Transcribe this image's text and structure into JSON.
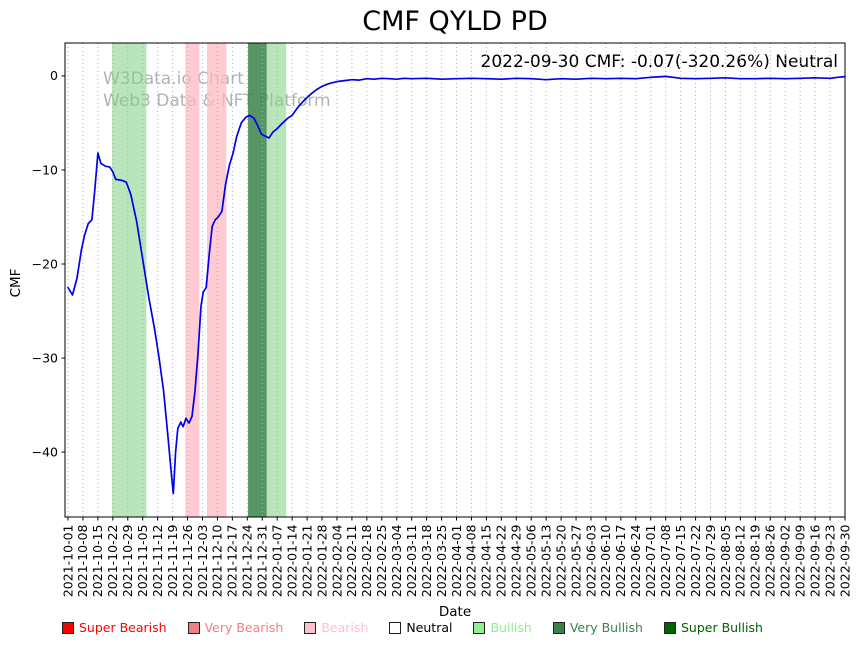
{
  "title": "CMF QYLD PD",
  "annotation": "2022-09-30 CMF: -0.07(-320.26%) Neutral",
  "watermark": {
    "line1": "W3Data.io Chart",
    "line2": "Web3 Data & NFT Platform"
  },
  "chart_data": {
    "type": "line",
    "title": "CMF QYLD PD",
    "xlabel": "Date",
    "ylabel": "CMF",
    "ylim": [
      -46.9,
      3.5
    ],
    "grid": "vertical-dotted",
    "line_color": "#0000ee",
    "y_tick_values": [
      0,
      -10,
      -20,
      -30,
      -40
    ],
    "y_tick_labels": [
      "0",
      "−10",
      "−20",
      "−30",
      "−40"
    ],
    "x_tick_labels": [
      "2021-10-01",
      "2021-10-08",
      "2021-10-15",
      "2021-10-22",
      "2021-10-29",
      "2021-11-05",
      "2021-11-12",
      "2021-11-19",
      "2021-11-26",
      "2021-12-03",
      "2021-12-10",
      "2021-12-17",
      "2021-12-24",
      "2021-12-31",
      "2022-01-07",
      "2022-01-14",
      "2022-01-21",
      "2022-01-28",
      "2022-02-04",
      "2022-02-11",
      "2022-02-18",
      "2022-02-25",
      "2022-03-04",
      "2022-03-11",
      "2022-03-18",
      "2022-03-25",
      "2022-04-01",
      "2022-04-08",
      "2022-04-15",
      "2022-04-22",
      "2022-04-29",
      "2022-05-06",
      "2022-05-13",
      "2022-05-20",
      "2022-05-27",
      "2022-06-03",
      "2022-06-10",
      "2022-06-17",
      "2022-06-24",
      "2022-07-01",
      "2022-07-08",
      "2022-07-15",
      "2022-07-22",
      "2022-07-29",
      "2022-08-05",
      "2022-08-12",
      "2022-08-19",
      "2022-08-26",
      "2022-09-02",
      "2022-09-09",
      "2022-09-16",
      "2022-09-23",
      "2022-09-30"
    ],
    "series": [
      {
        "name": "CMF",
        "points": [
          [
            0,
            -22.5
          ],
          [
            0.3,
            -23.3
          ],
          [
            0.6,
            -21.5
          ],
          [
            0.9,
            -18.5
          ],
          [
            1.1,
            -17
          ],
          [
            1.35,
            -15.7
          ],
          [
            1.6,
            -15.3
          ],
          [
            1.8,
            -12
          ],
          [
            2,
            -8.2
          ],
          [
            2.2,
            -9.3
          ],
          [
            2.5,
            -9.6
          ],
          [
            2.8,
            -9.7
          ],
          [
            3,
            -10.2
          ],
          [
            3.2,
            -11
          ],
          [
            3.6,
            -11.1
          ],
          [
            3.9,
            -11.3
          ],
          [
            4.2,
            -12.6
          ],
          [
            4.6,
            -15.5
          ],
          [
            5,
            -19.5
          ],
          [
            5.4,
            -23.5
          ],
          [
            5.8,
            -27
          ],
          [
            6.1,
            -30
          ],
          [
            6.4,
            -33.5
          ],
          [
            6.7,
            -38.5
          ],
          [
            6.9,
            -42
          ],
          [
            7.05,
            -44.4
          ],
          [
            7.2,
            -40
          ],
          [
            7.35,
            -37.5
          ],
          [
            7.55,
            -36.8
          ],
          [
            7.7,
            -37.3
          ],
          [
            7.9,
            -36.4
          ],
          [
            8.1,
            -36.9
          ],
          [
            8.3,
            -36.2
          ],
          [
            8.5,
            -33.5
          ],
          [
            8.7,
            -29.5
          ],
          [
            8.9,
            -24.5
          ],
          [
            9.05,
            -23
          ],
          [
            9.25,
            -22.5
          ],
          [
            9.45,
            -19
          ],
          [
            9.65,
            -16
          ],
          [
            9.85,
            -15.3
          ],
          [
            10.05,
            -15
          ],
          [
            10.3,
            -14.4
          ],
          [
            10.55,
            -11.5
          ],
          [
            10.8,
            -9.5
          ],
          [
            11.05,
            -8.2
          ],
          [
            11.3,
            -6.4
          ],
          [
            11.6,
            -5
          ],
          [
            11.9,
            -4.4
          ],
          [
            12.15,
            -4.2
          ],
          [
            12.45,
            -4.5
          ],
          [
            12.7,
            -5.3
          ],
          [
            12.95,
            -6.2
          ],
          [
            13.2,
            -6.4
          ],
          [
            13.45,
            -6.6
          ],
          [
            13.7,
            -6
          ],
          [
            14,
            -5.6
          ],
          [
            14.3,
            -5.1
          ],
          [
            14.7,
            -4.5
          ],
          [
            15,
            -4.2
          ],
          [
            15.4,
            -3.3
          ],
          [
            15.8,
            -2.6
          ],
          [
            16.2,
            -2
          ],
          [
            16.6,
            -1.5
          ],
          [
            17,
            -1.1
          ],
          [
            17.5,
            -0.8
          ],
          [
            18,
            -0.6
          ],
          [
            18.5,
            -0.5
          ],
          [
            19,
            -0.4
          ],
          [
            19.5,
            -0.45
          ],
          [
            20,
            -0.3
          ],
          [
            20.5,
            -0.35
          ],
          [
            21,
            -0.25
          ],
          [
            21.5,
            -0.3
          ],
          [
            22,
            -0.35
          ],
          [
            22.5,
            -0.25
          ],
          [
            23,
            -0.3
          ],
          [
            24,
            -0.25
          ],
          [
            25,
            -0.35
          ],
          [
            26,
            -0.3
          ],
          [
            27,
            -0.25
          ],
          [
            28,
            -0.3
          ],
          [
            29,
            -0.35
          ],
          [
            30,
            -0.25
          ],
          [
            31,
            -0.3
          ],
          [
            32,
            -0.4
          ],
          [
            33,
            -0.3
          ],
          [
            34,
            -0.35
          ],
          [
            35,
            -0.25
          ],
          [
            36,
            -0.3
          ],
          [
            37,
            -0.25
          ],
          [
            38,
            -0.3
          ],
          [
            39,
            -0.15
          ],
          [
            39.5,
            -0.1
          ],
          [
            40,
            -0.05
          ],
          [
            40.5,
            -0.15
          ],
          [
            41,
            -0.25
          ],
          [
            42,
            -0.3
          ],
          [
            43,
            -0.25
          ],
          [
            44,
            -0.2
          ],
          [
            45,
            -0.3
          ],
          [
            46,
            -0.3
          ],
          [
            47,
            -0.25
          ],
          [
            48,
            -0.3
          ],
          [
            49,
            -0.25
          ],
          [
            50,
            -0.2
          ],
          [
            51,
            -0.25
          ],
          [
            51.5,
            -0.15
          ],
          [
            52,
            -0.07
          ]
        ]
      }
    ],
    "bands": [
      {
        "signal": "Bullish",
        "x_start": 2.95,
        "x_end": 5.25,
        "color": "rgba(130,205,130,0.55)"
      },
      {
        "signal": "Bearish",
        "x_start": 7.85,
        "x_end": 8.8,
        "color": "rgba(255,185,195,0.75)"
      },
      {
        "signal": "Bearish",
        "x_start": 9.3,
        "x_end": 10.6,
        "color": "rgba(255,185,195,0.75)"
      },
      {
        "signal": "Very Bullish",
        "x_start": 12.05,
        "x_end": 13.3,
        "color": "rgba(56,130,73,0.85)"
      },
      {
        "signal": "Bullish",
        "x_start": 13.3,
        "x_end": 14.6,
        "color": "rgba(130,205,130,0.55)"
      }
    ],
    "last_point": {
      "date": "2022-09-30",
      "value": -0.07,
      "change_pct": "-320.26%",
      "signal": "Neutral"
    }
  },
  "legend": {
    "items": [
      {
        "label": "Super Bearish",
        "color": "#ff0000",
        "text_color": "#ff0000"
      },
      {
        "label": "Very Bearish",
        "color": "#f08080",
        "text_color": "#f08080"
      },
      {
        "label": "Bearish",
        "color": "#ffc0cb",
        "text_color": "#ffc0cb"
      },
      {
        "label": "Neutral",
        "color": "#ffffff",
        "text_color": "#000000"
      },
      {
        "label": "Bullish",
        "color": "#90ee90",
        "text_color": "#90ee90"
      },
      {
        "label": "Very Bullish",
        "color": "#38824a",
        "text_color": "#38824a"
      },
      {
        "label": "Super Bullish",
        "color": "#006400",
        "text_color": "#006400"
      }
    ]
  }
}
